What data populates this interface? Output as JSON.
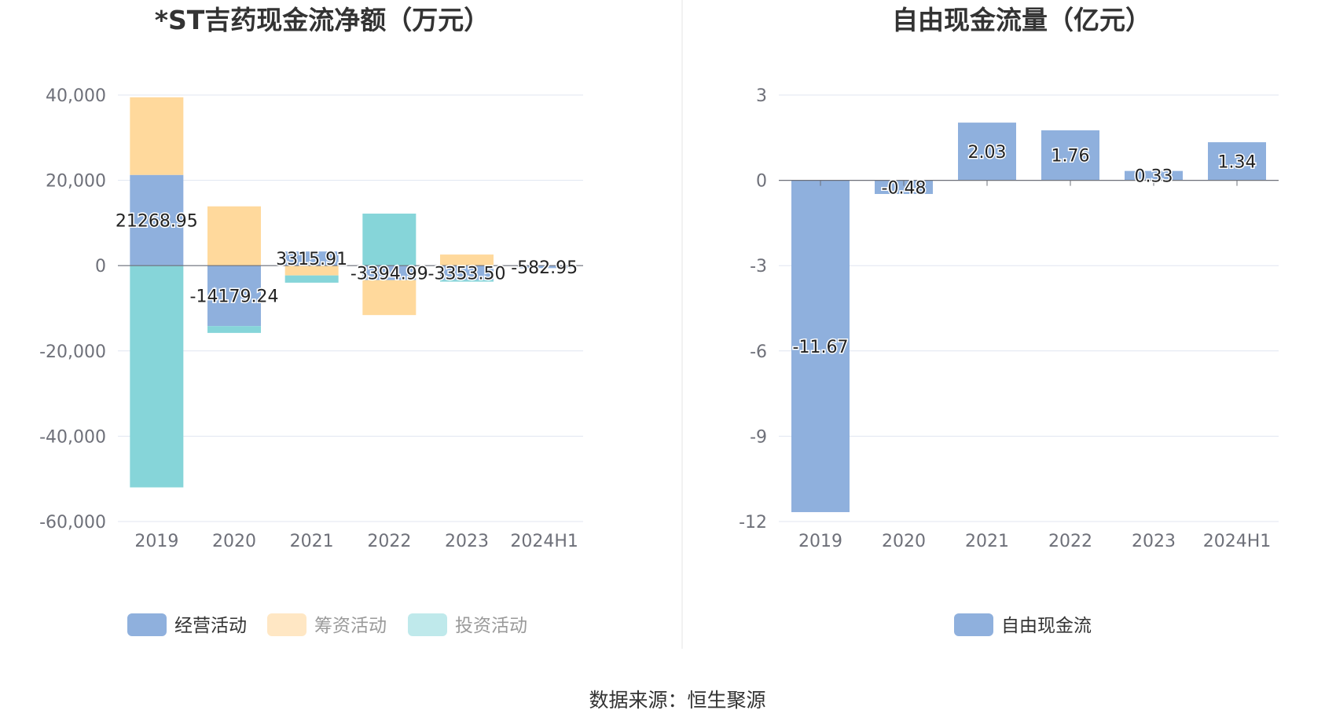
{
  "source": "数据来源：恒生聚源",
  "colors": {
    "operating": "#8fb0dd",
    "financing": "#ffd99c",
    "investing": "#86d5d9",
    "free_cash_flow": "#8fb0dd",
    "legend_operating": "#8fb0dd",
    "legend_financing": "#ffe7c4",
    "legend_investing": "#bfe9eb",
    "grid": "#e0e6f1",
    "axis": "#6e7079"
  },
  "chart_data": [
    {
      "type": "bar",
      "stacked": true,
      "title": "*ST吉药现金流净额（万元）",
      "categories": [
        "2019",
        "2020",
        "2021",
        "2022",
        "2023",
        "2024H1"
      ],
      "ylim": [
        -60000,
        40000
      ],
      "yticks": [
        40000,
        20000,
        0,
        -20000,
        -40000,
        -60000
      ],
      "ytick_labels": [
        "40,000",
        "20,000",
        "0",
        "-20,000",
        "-40,000",
        "-60,000"
      ],
      "grid": true,
      "legend_position": "bottom",
      "series": [
        {
          "name": "经营活动",
          "values": [
            21268.95,
            -14179.24,
            3315.91,
            -3394.99,
            -3353.5,
            -582.95
          ]
        },
        {
          "name": "筹资活动",
          "values": [
            18200,
            13900,
            -2300,
            -8200,
            2600,
            0
          ]
        },
        {
          "name": "投资活动",
          "values": [
            -52000,
            -1600,
            -1700,
            12200,
            -400,
            0
          ]
        }
      ],
      "data_labels": [
        "21268.95",
        "-14179.24",
        "3315.91",
        "-3394.99",
        "-3353.50",
        "-582.95"
      ]
    },
    {
      "type": "bar",
      "title": "自由现金流量（亿元）",
      "categories": [
        "2019",
        "2020",
        "2021",
        "2022",
        "2023",
        "2024H1"
      ],
      "ylim": [
        -12,
        3
      ],
      "yticks": [
        3,
        0,
        -3,
        -6,
        -9,
        -12
      ],
      "ytick_labels": [
        "3",
        "0",
        "-3",
        "-6",
        "-9",
        "-12"
      ],
      "grid": true,
      "legend_position": "bottom",
      "series": [
        {
          "name": "自由现金流",
          "values": [
            -11.67,
            -0.48,
            2.03,
            1.76,
            0.33,
            1.34
          ]
        }
      ],
      "data_labels": [
        "-11.67",
        "-0.48",
        "2.03",
        "1.76",
        "0.33",
        "1.34"
      ]
    }
  ]
}
